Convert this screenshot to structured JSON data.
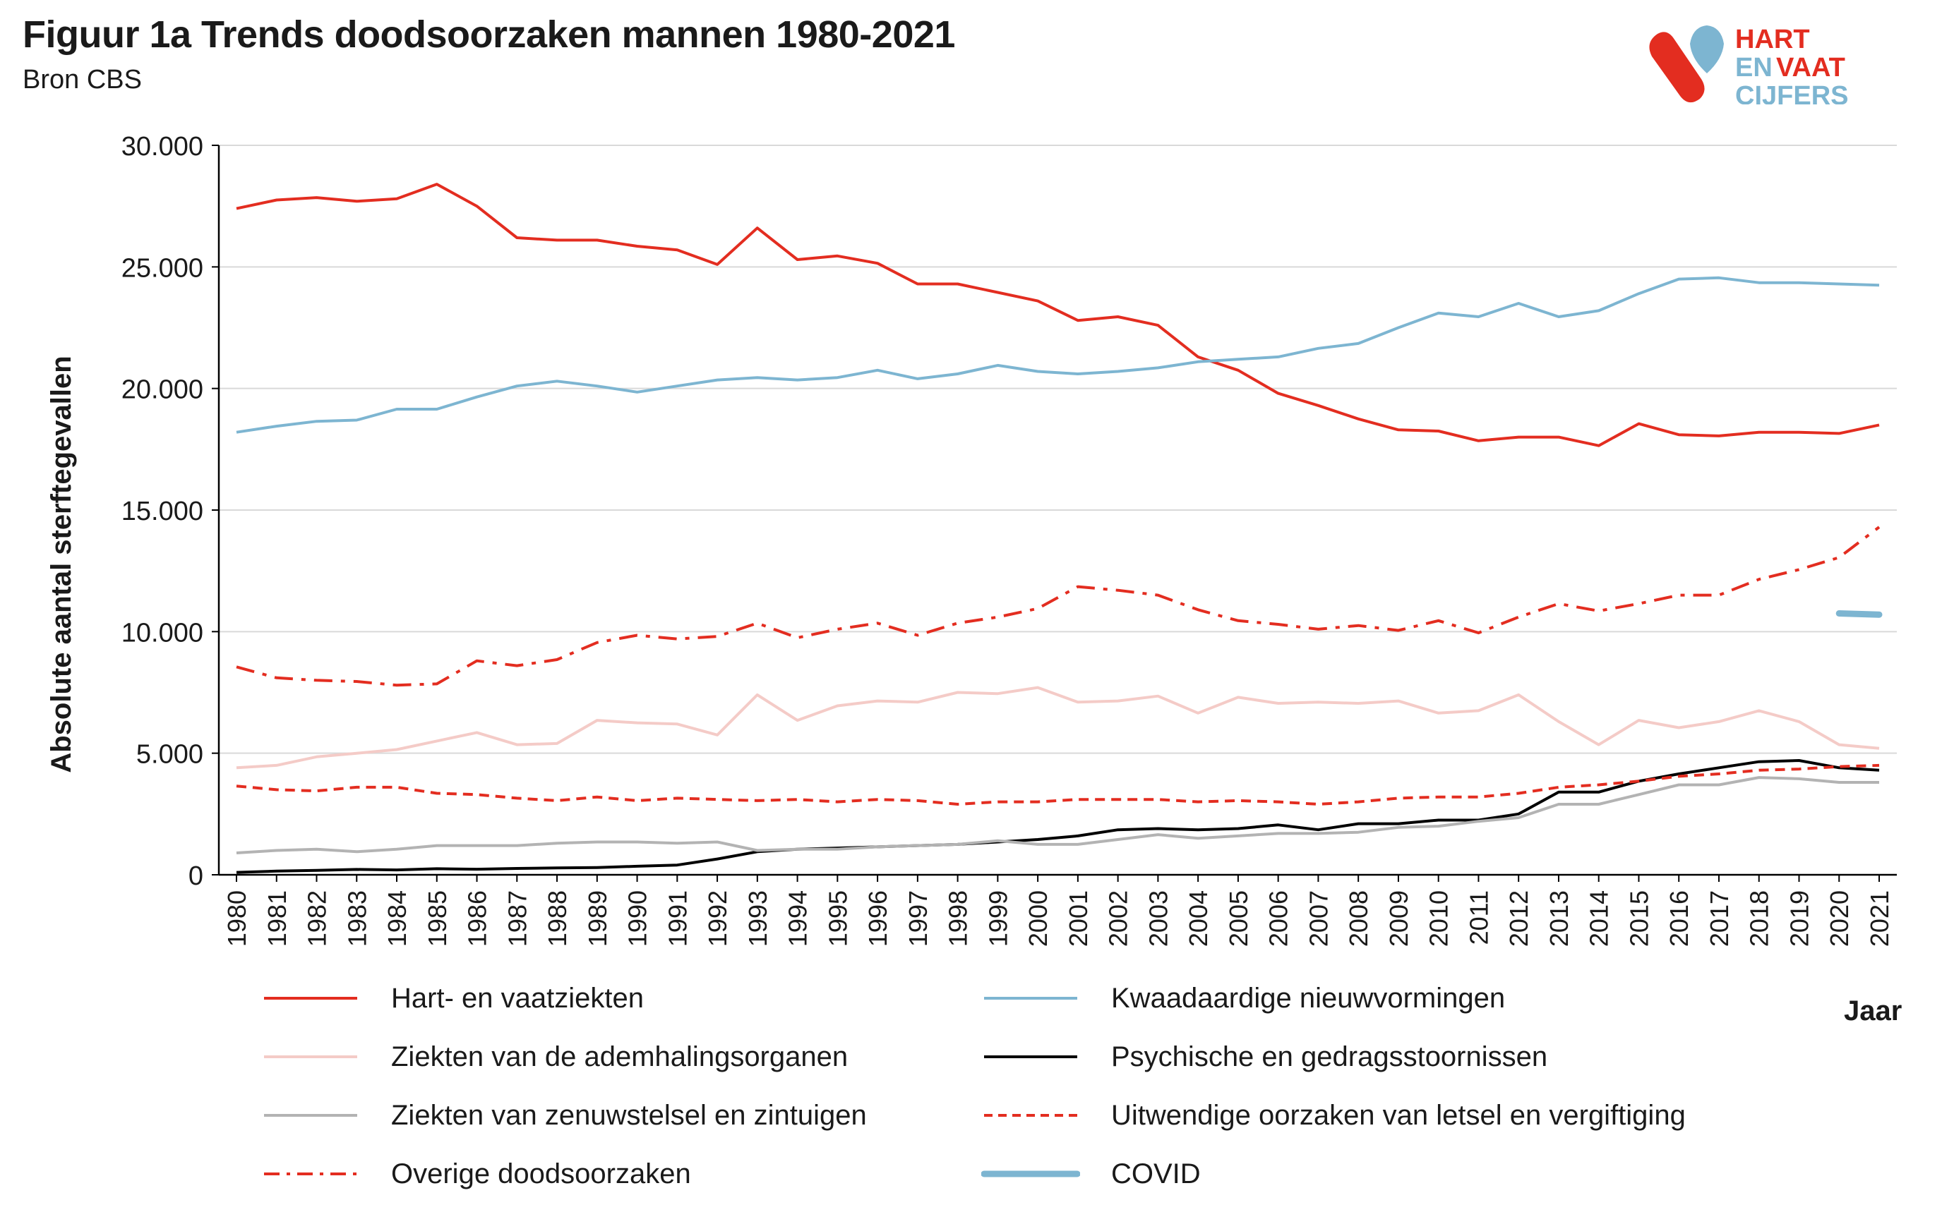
{
  "header": {
    "title": "Figuur 1a Trends doodsoorzaken mannen 1980-2021",
    "subtitle": "Bron CBS"
  },
  "logo": {
    "line1": "HART",
    "line2_a": "EN",
    "line2_b": "VAAT",
    "line3": "CIJFERS",
    "colors": {
      "red": "#e32d20",
      "blue": "#7db5d1"
    }
  },
  "chart_data": {
    "type": "line",
    "title": "Figuur 1a Trends doodsoorzaken mannen 1980-2021",
    "subtitle": "Bron CBS",
    "xlabel": "Jaar",
    "ylabel": "Absolute aantal sterftegevallen",
    "ylim": [
      0,
      30000
    ],
    "yticks": [
      0,
      5000,
      10000,
      15000,
      20000,
      25000,
      30000
    ],
    "ytick_labels": [
      "0",
      "5.000",
      "10.000",
      "15.000",
      "20.000",
      "25.000",
      "30.000"
    ],
    "grid": "horizontal",
    "legend_position": "bottom",
    "x": [
      1980,
      1981,
      1982,
      1983,
      1984,
      1985,
      1986,
      1987,
      1988,
      1989,
      1990,
      1991,
      1992,
      1993,
      1994,
      1995,
      1996,
      1997,
      1998,
      1999,
      2000,
      2001,
      2002,
      2003,
      2004,
      2005,
      2006,
      2007,
      2008,
      2009,
      2010,
      2011,
      2012,
      2013,
      2014,
      2015,
      2016,
      2017,
      2018,
      2019,
      2020,
      2021
    ],
    "series": [
      {
        "name": "Hart- en vaatziekten",
        "color": "#e32d20",
        "style": "solid",
        "values": [
          27400,
          27750,
          27850,
          27700,
          27800,
          28400,
          27500,
          26200,
          26100,
          26100,
          25850,
          25700,
          25100,
          26600,
          25300,
          25450,
          25150,
          24300,
          24300,
          23950,
          23600,
          22800,
          22950,
          22600,
          21300,
          20750,
          19800,
          19300,
          18750,
          18300,
          18250,
          17850,
          18000,
          18000,
          17650,
          18550,
          18100,
          18050,
          18200,
          18200,
          18150,
          18500
        ]
      },
      {
        "name": "Kwaadaardige nieuwvormingen",
        "color": "#7db5d1",
        "style": "solid",
        "values": [
          18200,
          18450,
          18650,
          18700,
          19150,
          19150,
          19650,
          20100,
          20300,
          20100,
          19850,
          20100,
          20350,
          20450,
          20350,
          20450,
          20750,
          20400,
          20600,
          20950,
          20700,
          20600,
          20700,
          20850,
          21100,
          21200,
          21300,
          21650,
          21850,
          22500,
          23100,
          22950,
          23500,
          22950,
          23200,
          23900,
          24500,
          24550,
          24350,
          24350,
          24300,
          24250
        ]
      },
      {
        "name": "Ziekten van de ademhalingsorganen",
        "color": "#f4cbc7",
        "style": "solid",
        "values": [
          4400,
          4500,
          4850,
          5000,
          5150,
          5500,
          5850,
          5350,
          5400,
          6350,
          6250,
          6200,
          5750,
          7400,
          6350,
          6950,
          7150,
          7100,
          7500,
          7450,
          7700,
          7100,
          7150,
          7350,
          6650,
          7300,
          7050,
          7100,
          7050,
          7150,
          6650,
          6750,
          7400,
          6300,
          5350,
          6350,
          6050,
          6300,
          6750,
          6300,
          5350,
          5200
        ]
      },
      {
        "name": "Psychische en gedragsstoornissen",
        "color": "#000000",
        "style": "solid",
        "values": [
          100,
          150,
          180,
          220,
          200,
          250,
          230,
          260,
          280,
          300,
          350,
          400,
          650,
          950,
          1050,
          1100,
          1150,
          1200,
          1250,
          1350,
          1450,
          1600,
          1850,
          1900,
          1850,
          1900,
          2050,
          1850,
          2100,
          2100,
          2250,
          2250,
          2500,
          3400,
          3400,
          3850,
          4150,
          4400,
          4650,
          4700,
          4400,
          4300
        ]
      },
      {
        "name": "Ziekten van zenuwstelsel en zintuigen",
        "color": "#b3b3b3",
        "style": "solid",
        "values": [
          900,
          1000,
          1050,
          950,
          1050,
          1200,
          1200,
          1200,
          1300,
          1350,
          1350,
          1300,
          1350,
          1000,
          1050,
          1050,
          1150,
          1200,
          1250,
          1400,
          1250,
          1250,
          1450,
          1650,
          1500,
          1600,
          1700,
          1700,
          1750,
          1950,
          2000,
          2200,
          2350,
          2900,
          2900,
          3300,
          3700,
          3700,
          4000,
          3950,
          3800,
          3800
        ]
      },
      {
        "name": "Uitwendige oorzaken van letsel en vergiftiging",
        "color": "#e32d20",
        "style": "dashed",
        "values": [
          3650,
          3500,
          3450,
          3600,
          3600,
          3350,
          3300,
          3150,
          3050,
          3200,
          3050,
          3150,
          3100,
          3050,
          3100,
          3000,
          3100,
          3050,
          2900,
          3000,
          3000,
          3100,
          3100,
          3100,
          3000,
          3050,
          3000,
          2900,
          3000,
          3150,
          3200,
          3200,
          3350,
          3600,
          3700,
          3850,
          4050,
          4150,
          4300,
          4350,
          4450,
          4500
        ]
      },
      {
        "name": "Overige doodsoorzaken",
        "color": "#e32d20",
        "style": "dashdot",
        "values": [
          8550,
          8100,
          8000,
          7950,
          7800,
          7850,
          8800,
          8600,
          8850,
          9550,
          9850,
          9700,
          9800,
          10350,
          9750,
          10100,
          10350,
          9850,
          10350,
          10600,
          10950,
          11850,
          11700,
          11500,
          10900,
          10450,
          10300,
          10100,
          10250,
          10050,
          10450,
          9950,
          10600,
          11150,
          10850,
          11150,
          11500,
          11500,
          12150,
          12550,
          13050,
          14300
        ]
      },
      {
        "name": "COVID",
        "color": "#7db5d1",
        "style": "thick",
        "x": [
          2020,
          2021
        ],
        "values": [
          10750,
          10700
        ]
      }
    ]
  }
}
